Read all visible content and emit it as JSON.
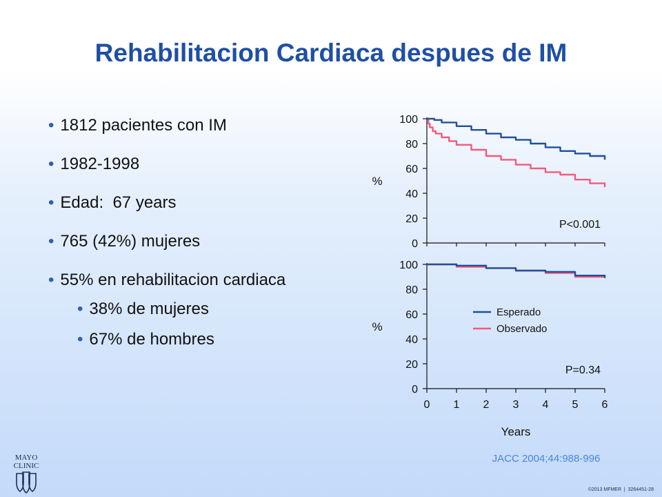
{
  "slide": {
    "title": "Rehabilitacion Cardiaca despues de IM",
    "bullets": [
      "1812 pacientes con IM",
      "1982-1998",
      "Edad:  67 years",
      "765 (42%) mujeres",
      "55% en rehabilitacion cardiaca"
    ],
    "sub_bullets": [
      "38% de mujeres",
      "67% de hombres"
    ],
    "bullet_glyph": "•",
    "citation": "JACC 2004;44:988-996",
    "logo_lines": [
      "MAYO",
      "CLINIC"
    ],
    "copyright": "©2013 MFMER  |  3264451-28"
  },
  "colors": {
    "title": "#1f4fa5",
    "citation": "#4a86d6",
    "esperado": "#1f4f9e",
    "observado": "#f25a7a"
  },
  "chart_data": [
    {
      "type": "line",
      "title": "",
      "xlabel": "",
      "ylabel": "%",
      "xlim": [
        0,
        6
      ],
      "ylim": [
        0,
        100
      ],
      "yticks": [
        0,
        20,
        40,
        60,
        80,
        100
      ],
      "annotation": "P<0.001",
      "series": [
        {
          "name": "Esperado",
          "color": "#1f4f9e",
          "x": [
            0,
            0.25,
            0.5,
            1,
            1.5,
            2,
            2.5,
            3,
            3.5,
            4,
            4.5,
            5,
            5.5,
            6
          ],
          "y": [
            100,
            99,
            97,
            94,
            91,
            88,
            85,
            83,
            80,
            77,
            74,
            72,
            70,
            67
          ]
        },
        {
          "name": "Observado",
          "color": "#f25a7a",
          "x": [
            0,
            0.05,
            0.1,
            0.2,
            0.3,
            0.5,
            0.75,
            1,
            1.5,
            2,
            2.5,
            3,
            3.5,
            4,
            4.5,
            5,
            5.5,
            6
          ],
          "y": [
            100,
            96,
            93,
            90,
            88,
            85,
            82,
            79,
            75,
            70,
            67,
            63,
            60,
            57,
            55,
            51,
            48,
            45
          ]
        }
      ]
    },
    {
      "type": "line",
      "title": "",
      "xlabel": "Years",
      "ylabel": "%",
      "xlim": [
        0,
        6
      ],
      "ylim": [
        0,
        100
      ],
      "yticks": [
        0,
        20,
        40,
        60,
        80,
        100
      ],
      "xticks": [
        0,
        1,
        2,
        3,
        4,
        5,
        6
      ],
      "annotation": "P=0.34",
      "legend": {
        "placement": "center-right",
        "entries": [
          "Esperado",
          "Observado"
        ]
      },
      "series": [
        {
          "name": "Esperado",
          "color": "#1f4f9e",
          "x": [
            0,
            1,
            2,
            3,
            4,
            5,
            6
          ],
          "y": [
            100,
            99,
            97,
            95,
            94,
            91,
            89
          ]
        },
        {
          "name": "Observado",
          "color": "#f25a7a",
          "x": [
            0,
            1,
            2,
            3,
            4,
            5,
            6
          ],
          "y": [
            100,
            98,
            97,
            95,
            93,
            90,
            89
          ]
        }
      ]
    }
  ]
}
